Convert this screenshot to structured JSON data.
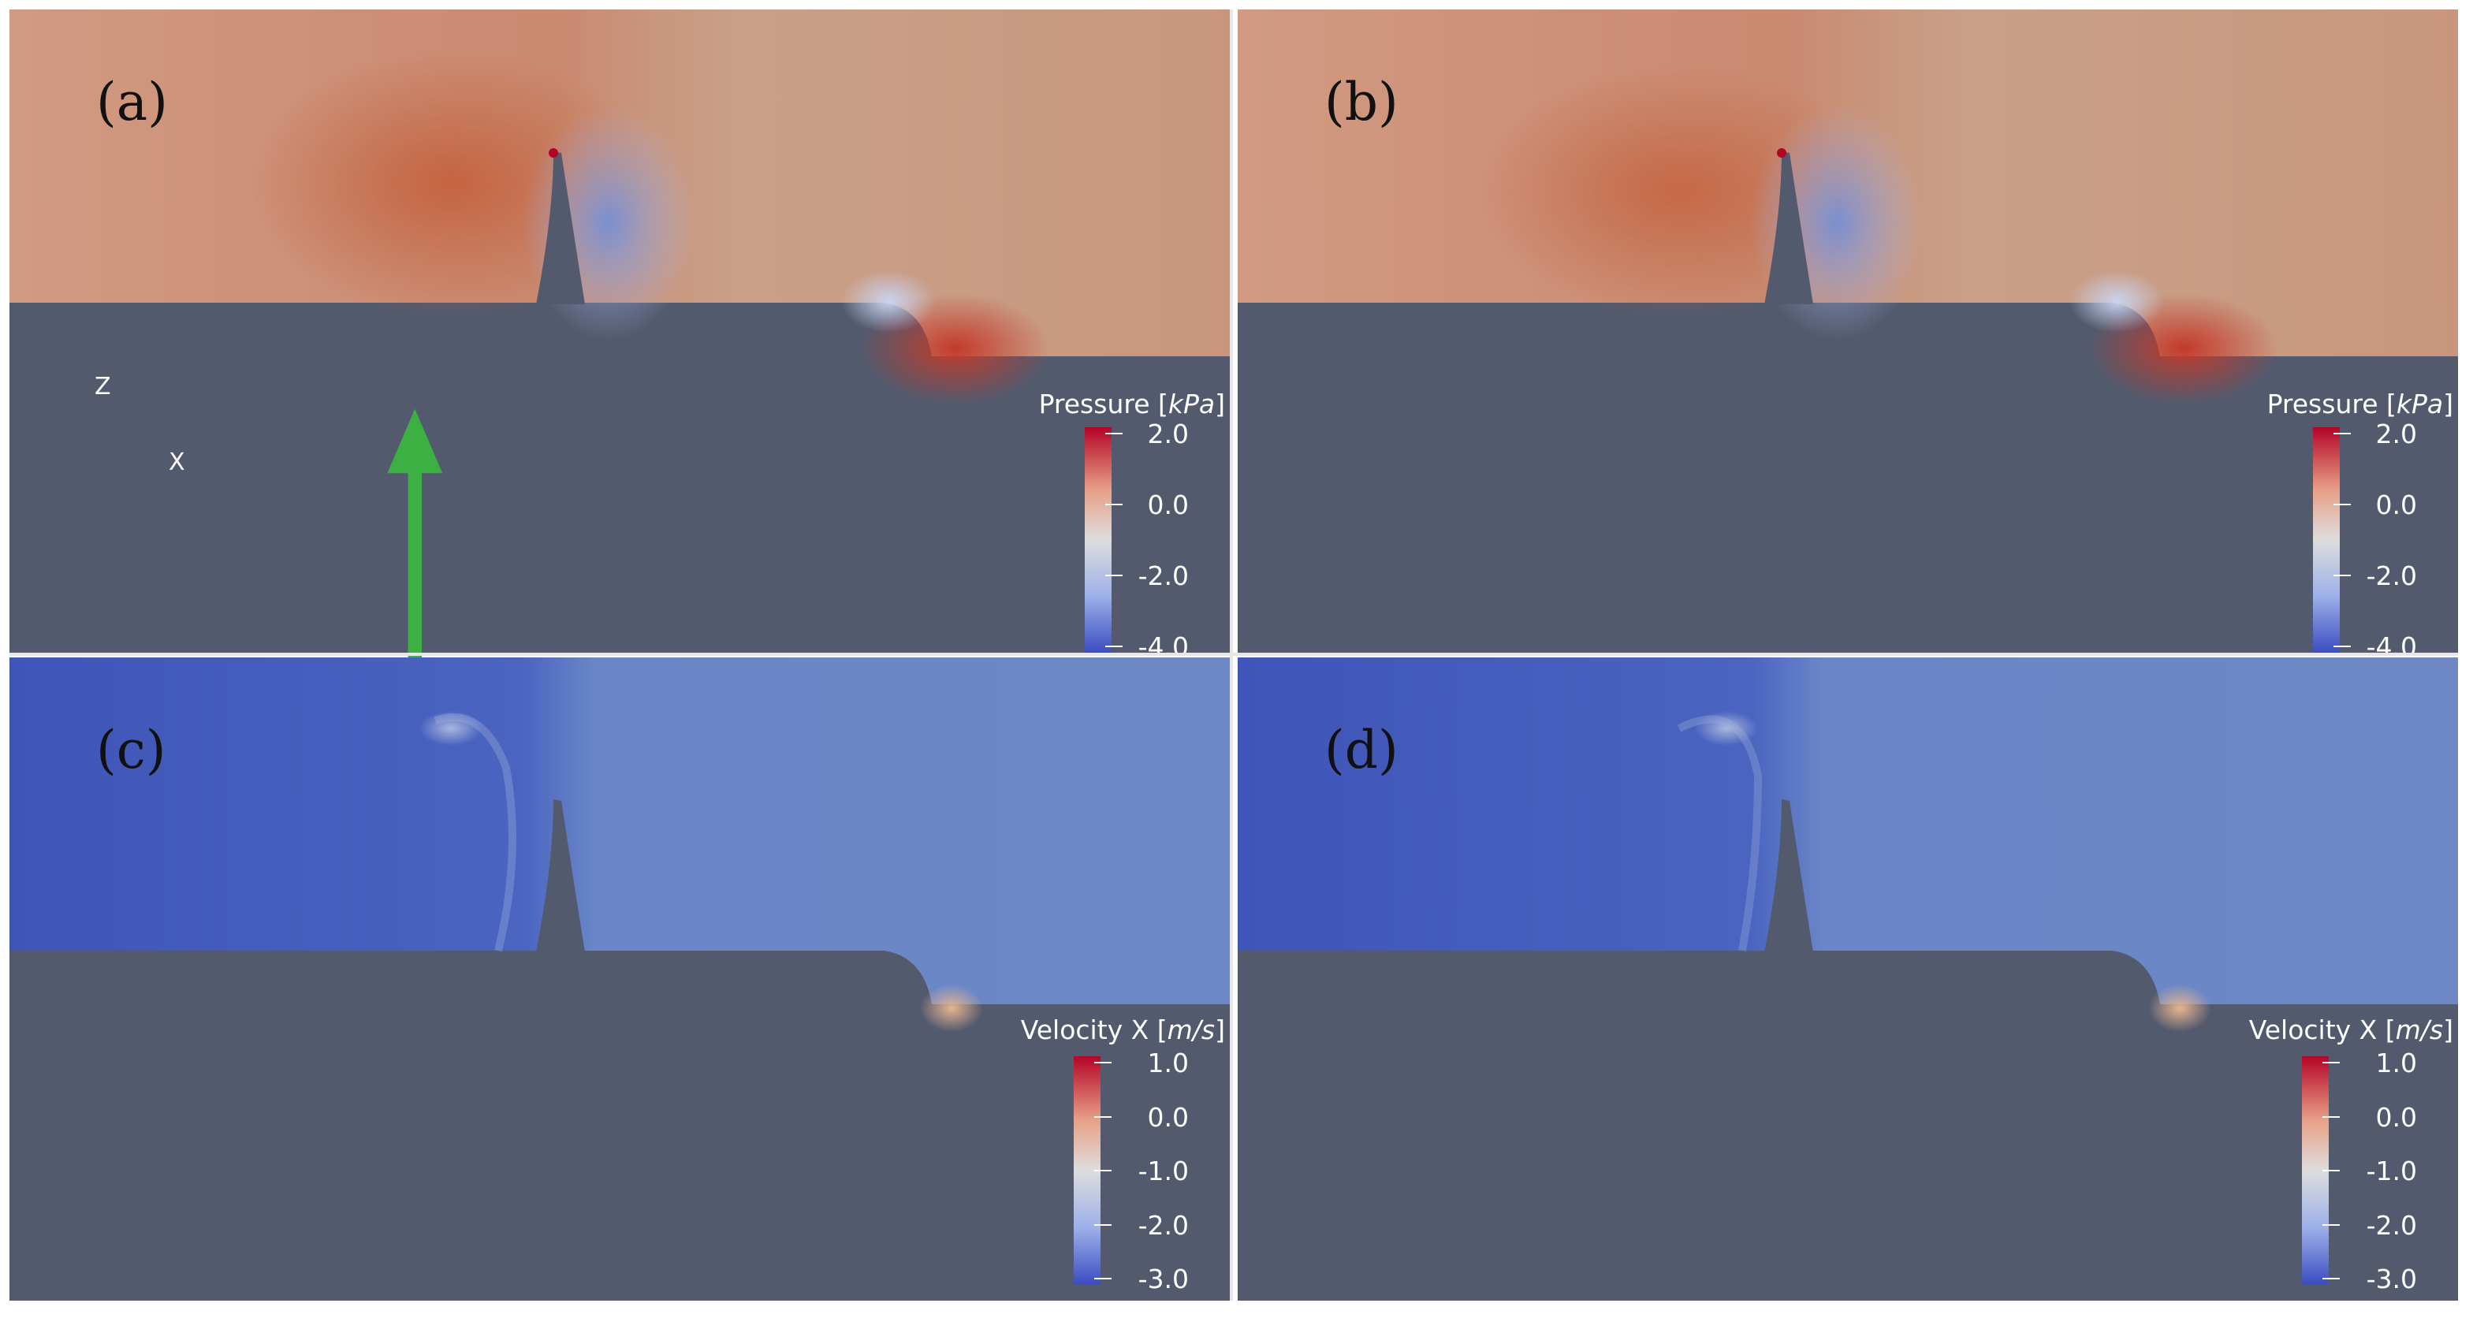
{
  "panels": [
    {
      "id": "a",
      "label": "(a)",
      "field": "pressure",
      "colorbar": {
        "title": "Pressure",
        "unit": "kPa",
        "ticks": [
          "2.0",
          "0.0",
          "-2.0",
          "-4.0"
        ]
      },
      "show_axes": true
    },
    {
      "id": "b",
      "label": "(b)",
      "field": "pressure",
      "colorbar": {
        "title": "Pressure",
        "unit": "kPa",
        "ticks": [
          "2.0",
          "0.0",
          "-2.0",
          "-4.0"
        ]
      },
      "show_axes": false
    },
    {
      "id": "c",
      "label": "(c)",
      "field": "velocity",
      "colorbar": {
        "title": "Velocity X",
        "unit": "m/s",
        "ticks": [
          "1.0",
          "0.0",
          "-1.0",
          "-2.0",
          "-3.0"
        ]
      },
      "show_axes": false
    },
    {
      "id": "d",
      "label": "(d)",
      "field": "velocity",
      "colorbar": {
        "title": "Velocity X",
        "unit": "m/s",
        "ticks": [
          "1.0",
          "0.0",
          "-1.0",
          "-2.0",
          "-3.0"
        ]
      },
      "show_axes": false
    }
  ],
  "axes_icon": {
    "z_label": "Z",
    "x_label": "X"
  },
  "colors": {
    "solid": "#535a6e",
    "pressure_field": "#c89680",
    "velocity_field": "#6683c0",
    "colormap_red": "#b40426",
    "colormap_white": "#dddddd",
    "colormap_blue": "#3b4cc0"
  }
}
